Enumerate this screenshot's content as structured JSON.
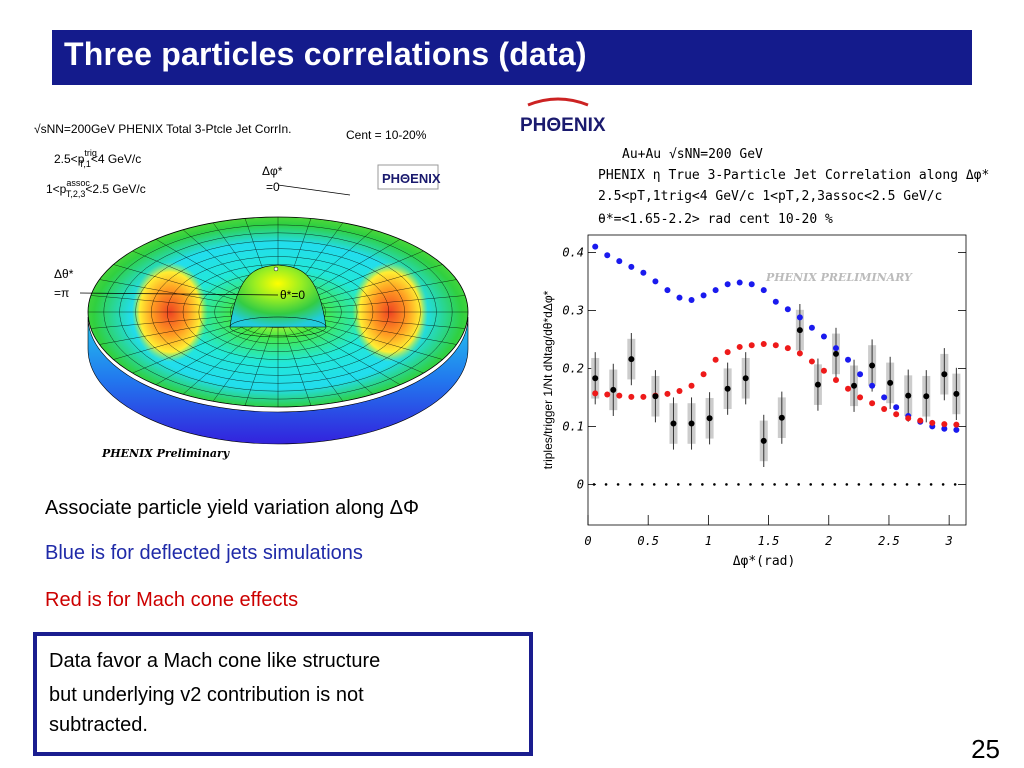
{
  "slide": {
    "title": "Three particles correlations (data)",
    "page_number": "25"
  },
  "left_figure": {
    "header_line1": "√sNN=200GeV PHENIX Total 3-Ptcle Jet CorrIn.",
    "centrality": "Cent = 10-20%",
    "trig_range": "2.5<p",
    "trig_sup": "trig",
    "trig_sub": "T,1",
    "trig_tail": "<4 GeV/c",
    "assoc_range": "1<p",
    "assoc_sup": "assoc",
    "assoc_sub": "T,2,3",
    "assoc_tail": "<2.5 GeV/c",
    "dphi_label": "Δφ*",
    "dphi_eq": "=0",
    "dtheta_label": "Δθ*",
    "dtheta_eq": "=π",
    "theta_zero": "θ*=0",
    "watermark": "PHENIX Preliminary",
    "logo": "PHΘENIX"
  },
  "bullets": [
    {
      "text": "Associate particle yield variation along ΔΦ",
      "color": "#000000"
    },
    {
      "text": "Blue is for deflected jets simulations",
      "color": "#1f2aa8"
    },
    {
      "text": "Red is for Mach cone effects",
      "color": "#cc0000"
    }
  ],
  "conclusion_box": {
    "line1": "Data favor a Mach cone like structure",
    "line2": "but underlying v2 contribution is not",
    "line3": "subtracted."
  },
  "right_figure": {
    "logo": "PHΘENIX",
    "header": [
      "Au+Au √sNN=200 GeV",
      "PHENIX η True 3-Particle Jet Correlation along Δφ*",
      "2.5<pT,1trig<4 GeV/c 1<pT,2,3assoc<2.5 GeV/c",
      "θ*=<1.65-2.2> rad      cent 10-20 %"
    ],
    "watermark": "PHENIX PRELIMINARY"
  },
  "chart_data": {
    "type": "scatter",
    "xlabel": "Δφ*(rad)",
    "ylabel": "triples/trigger 1/Nt dNtag/dθ*dΔφ*",
    "xlim": [
      0,
      3.14
    ],
    "ylim": [
      -0.07,
      0.43
    ],
    "x_ticks": [
      "0",
      "0.5",
      "1",
      "1.5",
      "2",
      "2.5",
      "3"
    ],
    "y_ticks": [
      "0",
      "0.1",
      "0.2",
      "0.3",
      "0.4"
    ],
    "series": [
      {
        "color": "#1a1aee",
        "x": [
          0.06,
          0.16,
          0.26,
          0.36,
          0.46,
          0.56,
          0.66,
          0.76,
          0.86,
          0.96,
          1.06,
          1.16,
          1.26,
          1.36,
          1.46,
          1.56,
          1.66,
          1.76,
          1.86,
          1.96,
          2.06,
          2.16,
          2.26,
          2.36,
          2.46,
          2.56,
          2.66,
          2.76,
          2.86,
          2.96,
          3.06
        ],
        "y": [
          0.41,
          0.395,
          0.385,
          0.375,
          0.365,
          0.35,
          0.335,
          0.322,
          0.318,
          0.326,
          0.335,
          0.345,
          0.348,
          0.345,
          0.335,
          0.315,
          0.302,
          0.288,
          0.27,
          0.255,
          0.235,
          0.215,
          0.19,
          0.17,
          0.15,
          0.133,
          0.118,
          0.108,
          0.1,
          0.096,
          0.094
        ]
      },
      {
        "color": "#ee1a1a",
        "x": [
          0.06,
          0.16,
          0.26,
          0.36,
          0.46,
          0.56,
          0.66,
          0.76,
          0.86,
          0.96,
          1.06,
          1.16,
          1.26,
          1.36,
          1.46,
          1.56,
          1.66,
          1.76,
          1.86,
          1.96,
          2.06,
          2.16,
          2.26,
          2.36,
          2.46,
          2.56,
          2.66,
          2.76,
          2.86,
          2.96,
          3.06
        ],
        "y": [
          0.157,
          0.155,
          0.153,
          0.151,
          0.151,
          0.153,
          0.156,
          0.161,
          0.17,
          0.19,
          0.215,
          0.228,
          0.237,
          0.24,
          0.242,
          0.24,
          0.235,
          0.226,
          0.212,
          0.196,
          0.18,
          0.165,
          0.15,
          0.14,
          0.13,
          0.121,
          0.114,
          0.11,
          0.106,
          0.104,
          0.103
        ]
      },
      {
        "color": "#000000",
        "x": [
          0.06,
          0.21,
          0.36,
          0.56,
          0.71,
          0.86,
          1.01,
          1.16,
          1.31,
          1.46,
          1.61,
          1.76,
          1.91,
          2.06,
          2.21,
          2.36,
          2.51,
          2.66,
          2.81,
          2.96,
          3.06
        ],
        "y": [
          0.183,
          0.163,
          0.216,
          0.152,
          0.105,
          0.105,
          0.114,
          0.165,
          0.183,
          0.075,
          0.115,
          0.266,
          0.172,
          0.225,
          0.17,
          0.205,
          0.175,
          0.153,
          0.152,
          0.19,
          0.156
        ]
      }
    ]
  }
}
